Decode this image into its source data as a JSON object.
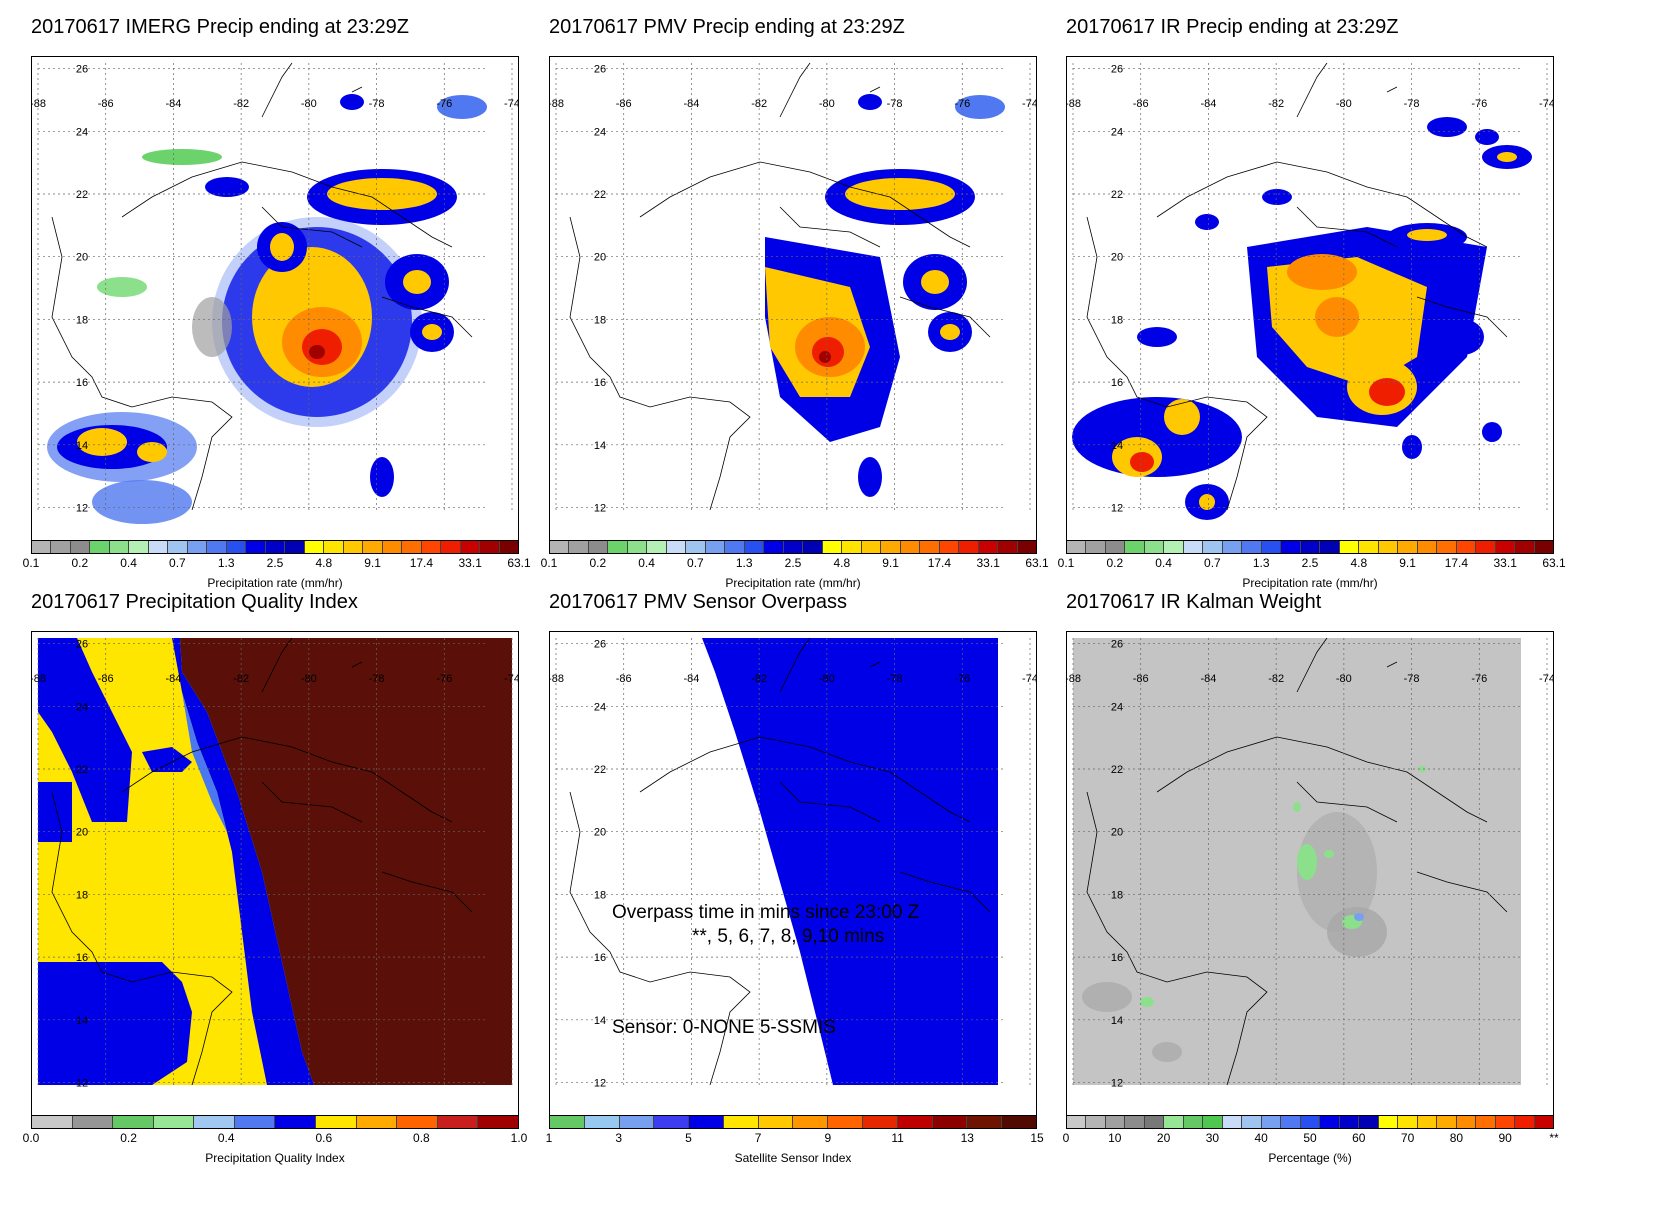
{
  "panels": [
    {
      "id": "imerg",
      "title": "20170617 IMERG Precip ending at 23:29Z",
      "colorbar": {
        "label": "Precipitation rate (mm/hr)",
        "ticks": [
          "0.1",
          "0.2",
          "0.4",
          "0.7",
          "1.3",
          "2.5",
          "4.8",
          "9.1",
          "17.4",
          "33.1",
          "63.1"
        ]
      }
    },
    {
      "id": "pmv",
      "title": "20170617 PMV Precip ending at 23:29Z",
      "colorbar": {
        "label": "Precipitation rate (mm/hr)",
        "ticks": [
          "0.1",
          "0.2",
          "0.4",
          "0.7",
          "1.3",
          "2.5",
          "4.8",
          "9.1",
          "17.4",
          "33.1",
          "63.1"
        ]
      }
    },
    {
      "id": "ir",
      "title": "20170617 IR Precip ending at 23:29Z",
      "colorbar": {
        "label": "Precipitation rate (mm/hr)",
        "ticks": [
          "0.1",
          "0.2",
          "0.4",
          "0.7",
          "1.3",
          "2.5",
          "4.8",
          "9.1",
          "17.4",
          "33.1",
          "63.1"
        ]
      }
    },
    {
      "id": "pqi",
      "title": "20170617 Precipitation Quality Index",
      "colorbar": {
        "label": "Precipitation Quality Index",
        "ticks": [
          "0.0",
          "0.2",
          "0.4",
          "0.6",
          "0.8",
          "1.0"
        ]
      }
    },
    {
      "id": "overpass",
      "title": "20170617 PMV Sensor Overpass",
      "colorbar": {
        "label": "Satellite Sensor Index",
        "ticks": [
          "1",
          "3",
          "5",
          "7",
          "9",
          "11",
          "13",
          "15"
        ]
      },
      "annotations": {
        "line1": "Overpass time in mins since 23:00 Z",
        "line2": "**, 5, 6, 7, 8, 9,10 mins",
        "line3": "Sensor:   0-NONE  5-SSMIS"
      }
    },
    {
      "id": "kalman",
      "title": "20170617 IR Kalman Weight",
      "colorbar": {
        "label": "Percentage (%)",
        "ticks": [
          "0",
          "10",
          "20",
          "30",
          "40",
          "50",
          "60",
          "70",
          "80",
          "90",
          "**"
        ]
      }
    }
  ],
  "map_axes": {
    "lon_labels": [
      "-88",
      "-86",
      "-84",
      "-82",
      "-80",
      "-78",
      "-76",
      "-74"
    ],
    "lat_labels": [
      "26",
      "24",
      "22",
      "20",
      "18",
      "16",
      "14",
      "12"
    ]
  },
  "colors": {
    "precip_scale": [
      "#b4b4b4",
      "#a0a0a0",
      "#8c8c8c",
      "#6cd26c",
      "#8ce08c",
      "#b4f0b4",
      "#c8dcf8",
      "#a0c4f0",
      "#78a0f0",
      "#5078f0",
      "#2850f0",
      "#0000e6",
      "#0000c8",
      "#0000b4",
      "#ffff00",
      "#ffe400",
      "#ffc800",
      "#ffaa00",
      "#ff8c00",
      "#ff6e00",
      "#ff4600",
      "#f01e00",
      "#c80000",
      "#a00000",
      "#780000"
    ],
    "pqi_scale": [
      "#c8c8c8",
      "#969696",
      "#64c864",
      "#96e696",
      "#a0c8f0",
      "#5078f0",
      "#0000e6",
      "#ffe600",
      "#ffaa00",
      "#ff6400",
      "#c81e1e",
      "#a00000"
    ],
    "sensor_scale": [
      "#64c864",
      "#96c8f0",
      "#78a0f0",
      "#3c3cf0",
      "#0000e6",
      "#ffe600",
      "#ffc800",
      "#ff9600",
      "#ff6400",
      "#e62800",
      "#be0000",
      "#8c0000",
      "#6e1400",
      "#500a00"
    ],
    "kalman_scale": [
      "#c8c8c8",
      "#b4b4b4",
      "#a0a0a0",
      "#8c8c8c",
      "#787878",
      "#96e696",
      "#64c864",
      "#50c850",
      "#c8dcf8",
      "#a0c4f0",
      "#78a0f0",
      "#5078f0",
      "#2850f0",
      "#0000e6",
      "#0000c8",
      "#0000b4",
      "#ffff00",
      "#ffe400",
      "#ffc800",
      "#ffaa00",
      "#ff8c00",
      "#ff6e00",
      "#ff4600",
      "#f01e00",
      "#c80000"
    ],
    "pqi_dark": "#5a0f08",
    "pqi_yellow": "#ffe600",
    "pqi_blue": "#0000e6",
    "pqi_lightblue": "#4a78f0",
    "overpass_blue": "#0000e6",
    "kalman_gray": "#c4c4c4"
  }
}
